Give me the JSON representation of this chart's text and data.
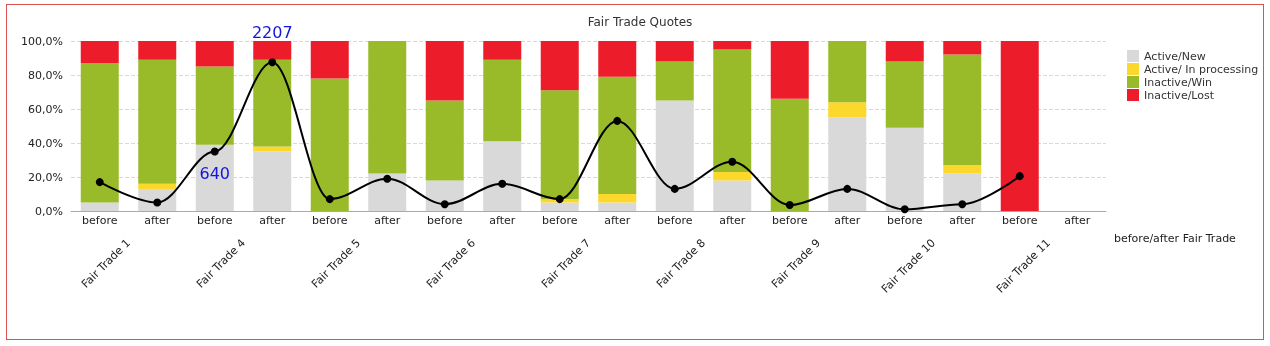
{
  "chart_data": {
    "type": "bar",
    "title": "Fair Trade Quotes",
    "xlabel": "before/after Fair Trade",
    "categories": [
      "before",
      "after",
      "before",
      "after",
      "before",
      "after",
      "before",
      "after",
      "before",
      "after",
      "before",
      "after",
      "before",
      "after",
      "before",
      "after",
      "before",
      "after"
    ],
    "annotations": [
      "Fair Trade 1",
      "Fair Trade 4",
      "Fair Trade 5",
      "Fair Trade 6",
      "Fair Trade 7",
      "Fair Trade 8",
      "Fair Trade 9",
      "Fair Trade 10",
      "Fair Trade 11",
      "2207",
      "640"
    ],
    "stacked": true,
    "series": [
      {
        "name": "Active/New",
        "color": "#d9d9d9",
        "values": [
          5,
          13,
          39,
          35,
          0,
          22,
          18,
          41,
          5,
          5,
          65,
          18,
          0,
          55,
          49,
          22,
          0,
          null
        ]
      },
      {
        "name": "Active/ In processing",
        "color": "#fcd82c",
        "values": [
          0,
          3,
          0,
          3,
          0,
          0,
          0,
          0,
          2,
          5,
          0,
          5,
          0,
          9,
          0,
          5,
          0,
          null
        ]
      },
      {
        "name": "Inactive/Win",
        "color": "#99bb2a",
        "values": [
          82,
          73,
          46,
          51,
          78,
          78,
          47,
          48,
          64,
          69,
          23,
          72,
          66,
          36,
          39,
          65,
          0,
          null
        ]
      },
      {
        "name": "Inactive/Lost",
        "color": "#ed1c2a",
        "values": [
          13,
          11,
          15,
          11,
          22,
          0,
          35,
          11,
          29,
          21,
          12,
          5,
          34,
          0,
          12,
          8,
          100,
          null
        ]
      },
      {
        "type": "line",
        "color": "#000000",
        "marker": "circle",
        "line_style": "solid",
        "values": [
          17,
          5,
          35,
          87.5,
          7,
          19,
          4,
          16,
          7,
          53,
          13,
          29,
          3.5,
          13,
          1,
          4,
          20.5,
          null
        ]
      }
    ],
    "ylim": [
      0,
      100
    ],
    "yticks": [
      {
        "value": 0,
        "label": "0,0%"
      },
      {
        "value": 20,
        "label": "20,0%"
      },
      {
        "value": 40,
        "label": "40,0%"
      },
      {
        "value": 60,
        "label": "60,0%"
      },
      {
        "value": 80,
        "label": "80,0%"
      },
      {
        "value": 100,
        "label": "100,0%"
      }
    ],
    "grid": "y",
    "legend": "top right"
  }
}
